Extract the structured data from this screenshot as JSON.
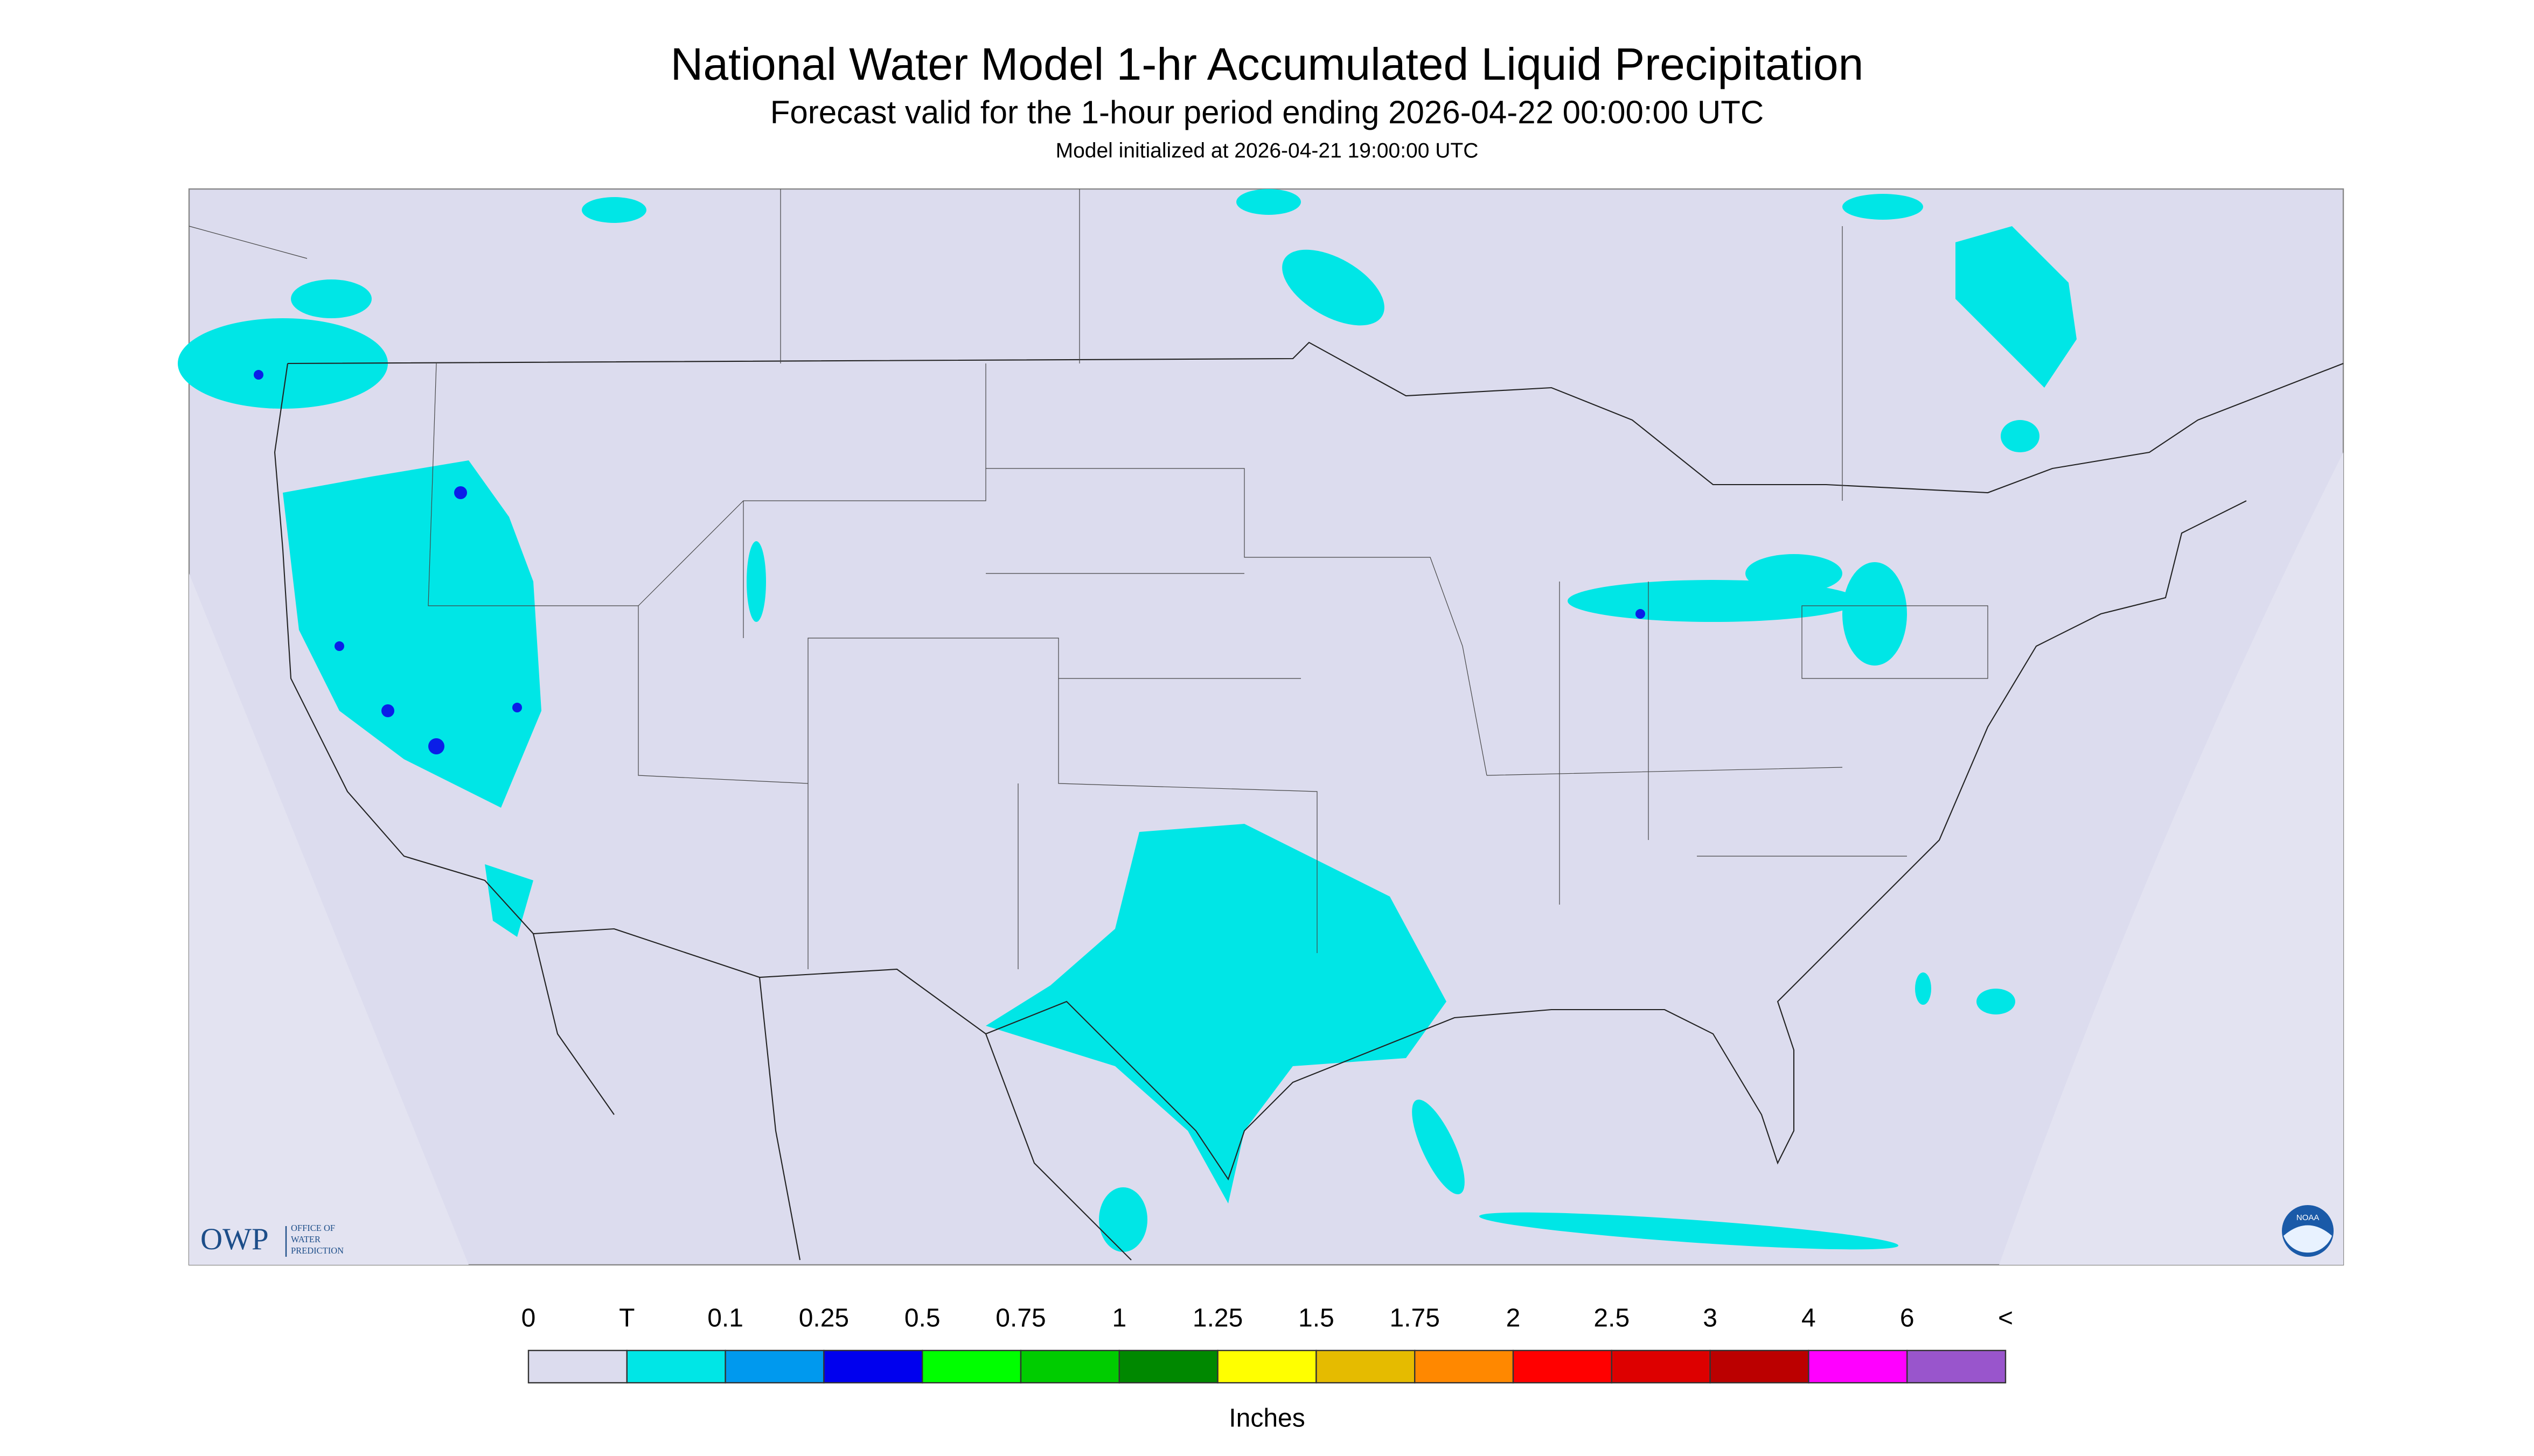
{
  "header": {
    "title": "National Water Model 1-hr Accumulated Liquid Precipitation",
    "subtitle": "Forecast valid for the 1-hour period ending 2026-04-22 00:00:00 UTC",
    "initialized": "Model initialized at 2026-04-21 19:00:00 UTC"
  },
  "logo": {
    "owp": "OWP",
    "office": [
      "OFFICE OF",
      "WATER",
      "PREDICTION"
    ],
    "noaa": "NOAA"
  },
  "legend": {
    "labels": [
      "0",
      "T",
      "0.1",
      "0.25",
      "0.5",
      "0.75",
      "1",
      "1.25",
      "1.5",
      "1.75",
      "2",
      "2.5",
      "3",
      "4",
      "6",
      "<"
    ],
    "colors": [
      "#dcdcee",
      "#00e6e6",
      "#0099ee",
      "#0000ee",
      "#00ff00",
      "#00cc00",
      "#008800",
      "#ffff00",
      "#e5bb00",
      "#ff8800",
      "#ff0000",
      "#dd0000",
      "#bb0000",
      "#ff00ff",
      "#9955cc"
    ],
    "unit": "Inches"
  }
}
